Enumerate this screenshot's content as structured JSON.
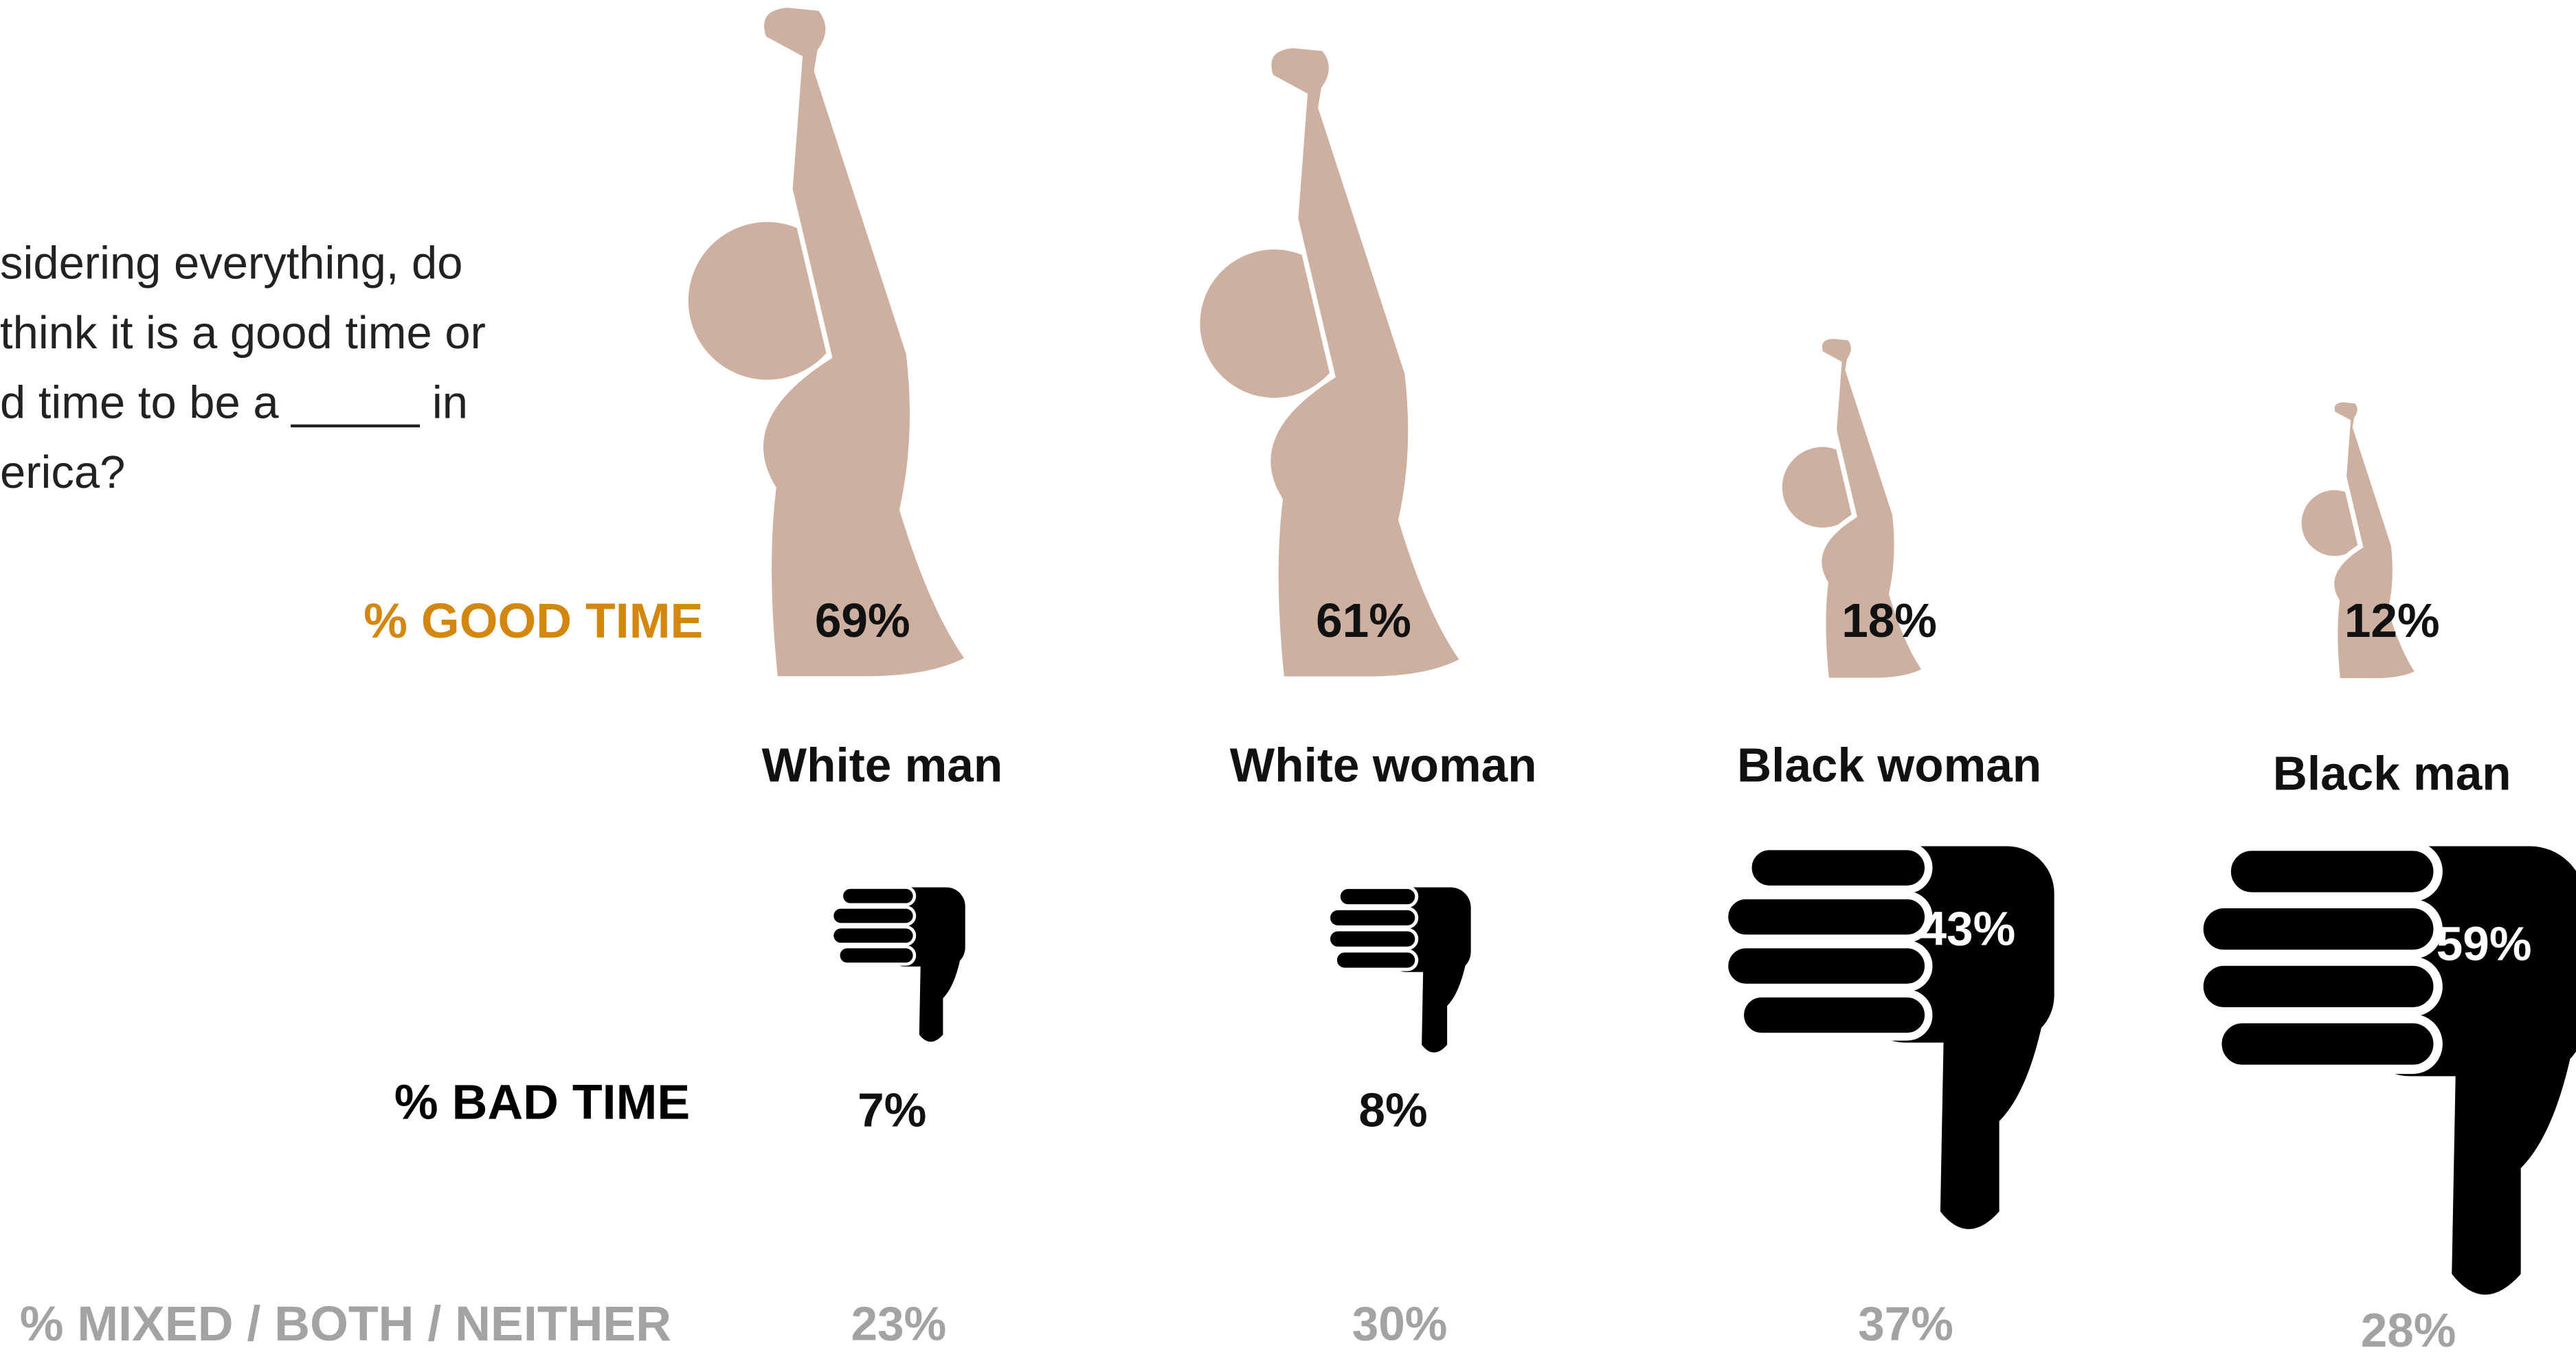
{
  "chart_data": {
    "type": "pictograph",
    "subtitle": [
      "sidering everything, do",
      "think it is a good time or",
      "d time to be a _____ in",
      "erica?"
    ],
    "categories": [
      "White man",
      "White woman",
      "Black woman",
      "Black man"
    ],
    "series": [
      {
        "name": "% GOOD TIME",
        "name_color": "#d4870f",
        "color": "#cdb0a0",
        "values": [
          69,
          61,
          18,
          12
        ],
        "value_labels": [
          "69%",
          "61%",
          "18%",
          "12%"
        ]
      },
      {
        "name": "% BAD TIME",
        "name_color": "#000000",
        "color": "#000000",
        "values": [
          7,
          8,
          43,
          59
        ],
        "value_labels": [
          "7%",
          "8%",
          "43%",
          "59%"
        ]
      },
      {
        "name": "% MIXED / BOTH / NEITHER",
        "name_color": "#a3a3a3",
        "color": "#a3a3a3",
        "values": [
          23,
          30,
          37,
          28
        ],
        "value_labels": [
          "23%",
          "30%",
          "37%",
          "28%"
        ]
      }
    ]
  }
}
